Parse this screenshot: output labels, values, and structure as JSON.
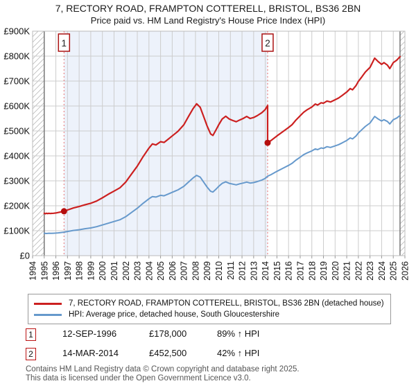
{
  "title": "7, RECTORY ROAD, FRAMPTON COTTERELL, BRISTOL, BS36 2BN",
  "subtitle": "Price paid vs. HM Land Registry's House Price Index (HPI)",
  "colors": {
    "property_line": "#cc2020",
    "hpi_line": "#6699cc",
    "grid": "#cccccc",
    "plot_border": "#bbbbbb",
    "data_edge": "#777777",
    "shade": "#edf2fb",
    "hatch": "#bbbbbb",
    "dotted_line": "#e87070",
    "marker": "#b50d0d",
    "sale_box_border": "#aa1111",
    "axis_text": "#111111",
    "footer_text": "#555555"
  },
  "legend": [
    {
      "label": "7, RECTORY ROAD, FRAMPTON COTTERELL, BRISTOL, BS36 2BN (detached house)"
    },
    {
      "label": "HPI: Average price, detached house, South Gloucestershire"
    }
  ],
  "sales": [
    {
      "num": "1",
      "date": "12-SEP-1996",
      "price": "£178,000",
      "hpi": "89% ↑ HPI",
      "year": 1996.7,
      "value": 178
    },
    {
      "num": "2",
      "date": "14-MAR-2014",
      "price": "£452,500",
      "hpi": "42% ↑ HPI",
      "year": 2014.2,
      "value": 452.5
    }
  ],
  "footer": [
    "Contains HM Land Registry data © Crown copyright and database right 2025.",
    "This data is licensed under the Open Government Licence v3.0."
  ],
  "chart_data": {
    "type": "line",
    "unit": "GBP thousands",
    "x_range": [
      1994,
      2026
    ],
    "y_range": [
      0,
      900
    ],
    "y_tick_labels": [
      "£0",
      "£100K",
      "£200K",
      "£300K",
      "£400K",
      "£500K",
      "£600K",
      "£700K",
      "£800K",
      "£900K"
    ],
    "x_tick_labels": [
      "1994",
      "1995",
      "1996",
      "1997",
      "1998",
      "1999",
      "2000",
      "2001",
      "2002",
      "2003",
      "2004",
      "2005",
      "2006",
      "2007",
      "2008",
      "2009",
      "2010",
      "2011",
      "2012",
      "2013",
      "2014",
      "2015",
      "2016",
      "2017",
      "2018",
      "2019",
      "2020",
      "2021",
      "2022",
      "2023",
      "2024",
      "2025",
      "2026"
    ],
    "data_start": 1995.0,
    "data_end": 2025.58,
    "shade_region": [
      1996.7,
      2014.2
    ],
    "grid": true,
    "legend_position": "bottom",
    "series": [
      {
        "name": "price_paid_indexed",
        "color": "#cc2020",
        "width": 2.2,
        "points": [
          [
            1995.0,
            170
          ],
          [
            1995.1,
            168
          ],
          [
            1995.2,
            170
          ],
          [
            1995.3,
            168.5
          ],
          [
            1995.4,
            170
          ],
          [
            1995.5,
            169
          ],
          [
            1995.6,
            169.5
          ],
          [
            1995.8,
            170
          ],
          [
            1996.0,
            171
          ],
          [
            1996.2,
            173
          ],
          [
            1996.4,
            175
          ],
          [
            1996.7,
            178
          ],
          [
            1997.0,
            183
          ],
          [
            1997.5,
            191
          ],
          [
            1998.0,
            197
          ],
          [
            1998.5,
            204
          ],
          [
            1999.0,
            210
          ],
          [
            1999.5,
            219
          ],
          [
            2000.0,
            232
          ],
          [
            2000.5,
            246
          ],
          [
            2001.0,
            259
          ],
          [
            2001.5,
            272
          ],
          [
            2002.0,
            295
          ],
          [
            2002.5,
            327
          ],
          [
            2003.0,
            359
          ],
          [
            2003.5,
            397
          ],
          [
            2004.0,
            431
          ],
          [
            2004.3,
            448
          ],
          [
            2004.6,
            444
          ],
          [
            2005.0,
            457
          ],
          [
            2005.3,
            454
          ],
          [
            2005.6,
            465
          ],
          [
            2006.0,
            480
          ],
          [
            2006.5,
            499
          ],
          [
            2007.0,
            525
          ],
          [
            2007.4,
            558
          ],
          [
            2007.8,
            590
          ],
          [
            2008.1,
            609
          ],
          [
            2008.4,
            595
          ],
          [
            2008.7,
            558
          ],
          [
            2009.0,
            520
          ],
          [
            2009.3,
            488
          ],
          [
            2009.5,
            482
          ],
          [
            2009.8,
            507
          ],
          [
            2010.0,
            525
          ],
          [
            2010.3,
            548
          ],
          [
            2010.6,
            559
          ],
          [
            2010.9,
            548
          ],
          [
            2011.2,
            542
          ],
          [
            2011.5,
            537
          ],
          [
            2011.8,
            544
          ],
          [
            2012.1,
            550
          ],
          [
            2012.4,
            558
          ],
          [
            2012.7,
            550
          ],
          [
            2013.0,
            554
          ],
          [
            2013.3,
            561
          ],
          [
            2013.7,
            573
          ],
          [
            2014.0,
            586
          ],
          [
            2014.2,
            602
          ],
          [
            2014.2,
            452.5
          ],
          [
            2014.5,
            462
          ],
          [
            2015.0,
            480
          ],
          [
            2015.5,
            497
          ],
          [
            2016.0,
            514
          ],
          [
            2016.3,
            525
          ],
          [
            2016.6,
            542
          ],
          [
            2017.0,
            561
          ],
          [
            2017.3,
            575
          ],
          [
            2017.6,
            585
          ],
          [
            2018.0,
            596
          ],
          [
            2018.3,
            608
          ],
          [
            2018.5,
            604
          ],
          [
            2018.8,
            613
          ],
          [
            2019.0,
            611
          ],
          [
            2019.3,
            620
          ],
          [
            2019.6,
            616
          ],
          [
            2020.0,
            625
          ],
          [
            2020.3,
            632
          ],
          [
            2020.6,
            642
          ],
          [
            2021.0,
            656
          ],
          [
            2021.3,
            670
          ],
          [
            2021.5,
            665
          ],
          [
            2021.8,
            682
          ],
          [
            2022.0,
            699
          ],
          [
            2022.3,
            717
          ],
          [
            2022.6,
            736
          ],
          [
            2023.0,
            755
          ],
          [
            2023.4,
            792
          ],
          [
            2023.7,
            778
          ],
          [
            2024.0,
            767
          ],
          [
            2024.2,
            774
          ],
          [
            2024.5,
            764
          ],
          [
            2024.7,
            750
          ],
          [
            2025.0,
            774
          ],
          [
            2025.3,
            784
          ],
          [
            2025.58,
            798
          ]
        ]
      },
      {
        "name": "hpi_average",
        "color": "#6699cc",
        "width": 2,
        "points": [
          [
            1995.0,
            90
          ],
          [
            1995.2,
            89
          ],
          [
            1995.4,
            90
          ],
          [
            1995.6,
            89.5
          ],
          [
            1995.8,
            90
          ],
          [
            1996.0,
            90.5
          ],
          [
            1996.2,
            91.5
          ],
          [
            1996.4,
            92.5
          ],
          [
            1996.7,
            94.2
          ],
          [
            1997.0,
            97
          ],
          [
            1997.5,
            101
          ],
          [
            1998.0,
            104
          ],
          [
            1998.5,
            108
          ],
          [
            1999.0,
            111
          ],
          [
            1999.5,
            116
          ],
          [
            2000.0,
            123
          ],
          [
            2000.5,
            130
          ],
          [
            2001.0,
            137
          ],
          [
            2001.5,
            144
          ],
          [
            2002.0,
            156
          ],
          [
            2002.5,
            173
          ],
          [
            2003.0,
            190
          ],
          [
            2003.5,
            210
          ],
          [
            2004.0,
            228
          ],
          [
            2004.3,
            237
          ],
          [
            2004.6,
            235
          ],
          [
            2005.0,
            242
          ],
          [
            2005.3,
            240
          ],
          [
            2005.6,
            246
          ],
          [
            2006.0,
            254
          ],
          [
            2006.5,
            264
          ],
          [
            2007.0,
            278
          ],
          [
            2007.4,
            295
          ],
          [
            2007.8,
            312
          ],
          [
            2008.1,
            322
          ],
          [
            2008.4,
            315
          ],
          [
            2008.7,
            295
          ],
          [
            2009.0,
            275
          ],
          [
            2009.3,
            258
          ],
          [
            2009.5,
            255
          ],
          [
            2009.8,
            268
          ],
          [
            2010.0,
            278
          ],
          [
            2010.3,
            290
          ],
          [
            2010.6,
            296
          ],
          [
            2010.9,
            290
          ],
          [
            2011.2,
            287
          ],
          [
            2011.5,
            284
          ],
          [
            2011.8,
            288
          ],
          [
            2012.1,
            291
          ],
          [
            2012.4,
            295
          ],
          [
            2012.7,
            291
          ],
          [
            2013.0,
            293
          ],
          [
            2013.3,
            297
          ],
          [
            2013.7,
            303
          ],
          [
            2014.0,
            310
          ],
          [
            2014.2,
            318.7
          ],
          [
            2014.5,
            325
          ],
          [
            2015.0,
            338
          ],
          [
            2015.5,
            350
          ],
          [
            2016.0,
            362
          ],
          [
            2016.3,
            370
          ],
          [
            2016.6,
            382
          ],
          [
            2017.0,
            395
          ],
          [
            2017.3,
            405
          ],
          [
            2017.6,
            412
          ],
          [
            2018.0,
            420
          ],
          [
            2018.3,
            428
          ],
          [
            2018.5,
            425
          ],
          [
            2018.8,
            432
          ],
          [
            2019.0,
            430
          ],
          [
            2019.3,
            437
          ],
          [
            2019.6,
            434
          ],
          [
            2020.0,
            440
          ],
          [
            2020.3,
            445
          ],
          [
            2020.6,
            452
          ],
          [
            2021.0,
            462
          ],
          [
            2021.3,
            472
          ],
          [
            2021.5,
            468
          ],
          [
            2021.8,
            480
          ],
          [
            2022.0,
            492
          ],
          [
            2022.3,
            505
          ],
          [
            2022.6,
            518
          ],
          [
            2023.0,
            532
          ],
          [
            2023.4,
            558
          ],
          [
            2023.7,
            548
          ],
          [
            2024.0,
            540
          ],
          [
            2024.2,
            545
          ],
          [
            2024.5,
            538
          ],
          [
            2024.7,
            528
          ],
          [
            2025.0,
            545
          ],
          [
            2025.3,
            552
          ],
          [
            2025.58,
            562
          ]
        ]
      }
    ]
  }
}
